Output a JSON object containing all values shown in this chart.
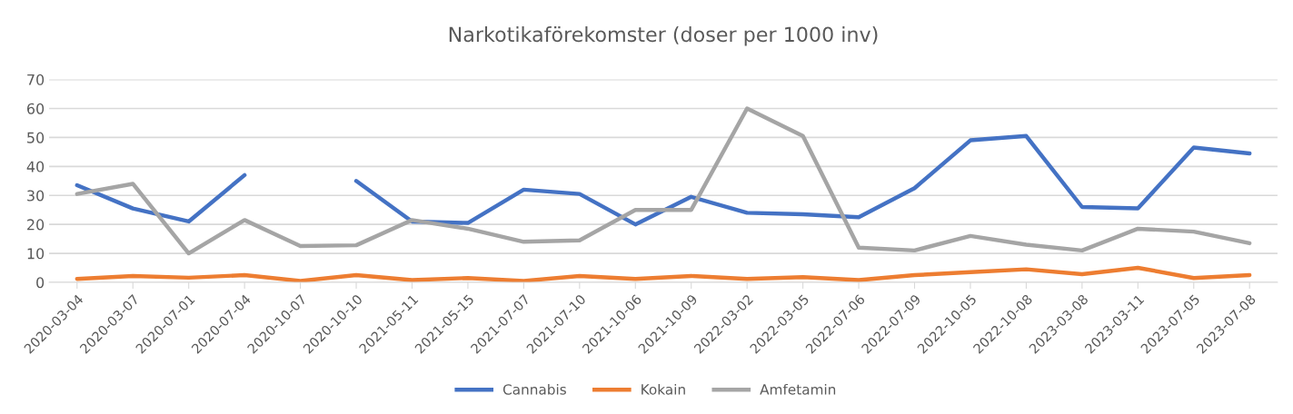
{
  "chart_data": {
    "type": "line",
    "title": "Narkotikaförekomster (doser per 1000 inv)",
    "categories": [
      "2020-03-04",
      "2020-03-07",
      "2020-07-01",
      "2020-07-04",
      "2020-10-07",
      "2020-10-10",
      "2021-05-11",
      "2021-05-15",
      "2021-07-07",
      "2021-07-10",
      "2021-10-06",
      "2021-10-09",
      "2022-03-02",
      "2022-03-05",
      "2022-07-06",
      "2022-07-09",
      "2022-10-05",
      "2022-10-08",
      "2023-03-08",
      "2023-03-11",
      "2023-07-05",
      "2023-07-08"
    ],
    "series": [
      {
        "name": "Cannabis",
        "color": "#4472c4",
        "values": [
          33.5,
          25.5,
          21,
          37,
          null,
          35,
          21,
          20.5,
          32,
          30.5,
          20,
          29.5,
          24,
          23.5,
          22.5,
          32.5,
          49,
          50.5,
          26,
          25.5,
          46.5,
          44.5
        ]
      },
      {
        "name": "Kokain",
        "color": "#ed7d31",
        "values": [
          1.2,
          2.2,
          1.6,
          2.5,
          0.5,
          2.5,
          0.8,
          1.5,
          0.5,
          2.2,
          1.2,
          2.2,
          1.2,
          1.8,
          0.8,
          2.5,
          3.5,
          4.5,
          2.8,
          5,
          1.5,
          2.5
        ]
      },
      {
        "name": "Amfetamin",
        "color": "#a5a5a5",
        "values": [
          30.5,
          34,
          10,
          21.5,
          12.5,
          12.8,
          21.5,
          18.5,
          14,
          14.5,
          25,
          25,
          60,
          50.5,
          12,
          11,
          16,
          13,
          11,
          18.5,
          17.5,
          13.5
        ]
      }
    ],
    "ylim": [
      0,
      70
    ],
    "yticks": [
      0,
      10,
      20,
      30,
      40,
      50,
      60,
      70
    ],
    "grid": "y",
    "legend": "bottom",
    "marker": "none",
    "line_style": "solid"
  }
}
